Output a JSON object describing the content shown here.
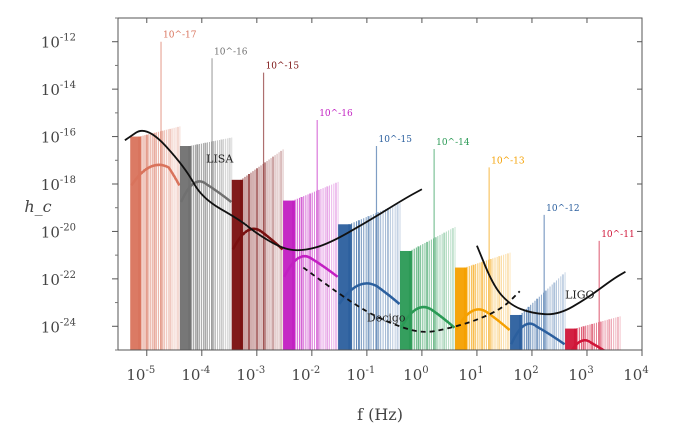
{
  "chart_data": {
    "type": "line",
    "xlabel": "f (Hz)",
    "ylabel": "h_c",
    "x_scale": "log",
    "y_scale": "log",
    "xlim": [
      3e-06,
      10000
    ],
    "ylim": [
      1e-25,
      1e-11
    ],
    "x_ticks": [
      {
        "value": 1e-05,
        "label": "10^-5"
      },
      {
        "value": 0.0001,
        "label": "10^-4"
      },
      {
        "value": 0.001,
        "label": "10^-3"
      },
      {
        "value": 0.01,
        "label": "10^-2"
      },
      {
        "value": 0.1,
        "label": "10^-1"
      },
      {
        "value": 1,
        "label": "10^0"
      },
      {
        "value": 10,
        "label": "10^1"
      },
      {
        "value": 100,
        "label": "10^2"
      },
      {
        "value": 1000,
        "label": "10^3"
      },
      {
        "value": 10000,
        "label": "10^4"
      }
    ],
    "y_ticks": [
      {
        "value": 1e-12,
        "label": "10^-12"
      },
      {
        "value": 1e-14,
        "label": "10^-14"
      },
      {
        "value": 1e-16,
        "label": "10^-16"
      },
      {
        "value": 1e-18,
        "label": "10^-18"
      },
      {
        "value": 1e-20,
        "label": "10^-20"
      },
      {
        "value": 1e-22,
        "label": "10^-22"
      },
      {
        "value": 1e-24,
        "label": "10^-24"
      }
    ],
    "sources": [
      {
        "label": "10^-17",
        "color": "#d9735c",
        "f_start": 5e-06,
        "f_end": 4e-05,
        "h_top": 3e-16,
        "h_peak": 1e-12,
        "bump_f": 2.5e-05,
        "bump_h": 5e-18,
        "fill_top": 1e-16
      },
      {
        "label": "10^-16",
        "color": "#707070",
        "f_start": 4e-05,
        "f_end": 0.00035,
        "h_top": 1e-16,
        "h_peak": 2e-13,
        "bump_f": 0.00012,
        "bump_h": 1e-18,
        "fill_top": 4e-17
      },
      {
        "label": "10^-15",
        "color": "#7a1010",
        "f_start": 0.00035,
        "f_end": 0.003,
        "h_top": 4e-17,
        "h_peak": 5e-14,
        "bump_f": 0.0012,
        "bump_h": 1e-20,
        "fill_top": 1.5e-18
      },
      {
        "label": "10^-16",
        "color": "#c21fc2",
        "f_start": 0.003,
        "f_end": 0.03,
        "h_top": 1.5e-18,
        "h_peak": 5e-16,
        "bump_f": 0.01,
        "bump_h": 7e-22,
        "fill_top": 2e-19
      },
      {
        "label": "10^-15",
        "color": "#2b5f9e",
        "f_start": 0.03,
        "f_end": 0.4,
        "h_top": 2e-19,
        "h_peak": 4e-17,
        "bump_f": 0.15,
        "bump_h": 5e-23,
        "fill_top": 2e-20
      },
      {
        "label": "10^-14",
        "color": "#2a9a55",
        "f_start": 0.4,
        "f_end": 4,
        "h_top": 2e-20,
        "h_peak": 3e-17,
        "bump_f": 1.5,
        "bump_h": 5e-24,
        "fill_top": 1.5e-21
      },
      {
        "label": "10^-13",
        "color": "#f5a000",
        "f_start": 4,
        "f_end": 40.0,
        "h_top": 1.5e-21,
        "h_peak": 5e-18,
        "bump_f": 15.0,
        "bump_h": 4e-24,
        "fill_top": 3e-22
      },
      {
        "label": "10^-12",
        "color": "#2b5f9e",
        "f_start": 40.0,
        "f_end": 400.0,
        "h_top": 3e-22,
        "h_peak": 5e-20,
        "bump_f": 120.0,
        "bump_h": 1e-24,
        "fill_top": 3e-24
      },
      {
        "label": "10^-11",
        "color": "#d01538",
        "f_start": 400.0,
        "f_end": 4000.0,
        "h_top": 3e-24,
        "h_peak": 4e-21,
        "bump_f": 1200.0,
        "bump_h": 2e-25,
        "fill_top": 8e-25
      }
    ],
    "detectors": [
      {
        "name": "LISA",
        "style": "solid",
        "points": [
          [
            4e-06,
            7e-17
          ],
          [
            1e-05,
            3e-16
          ],
          [
            5e-05,
            5e-18
          ],
          [
            0.0001,
            2.5e-19
          ],
          [
            0.0005,
            3e-20
          ],
          [
            0.001,
            8e-21
          ],
          [
            0.003,
            1.8e-21
          ],
          [
            0.007,
            1.5e-21
          ],
          [
            0.02,
            3e-21
          ],
          [
            0.1,
            2.5e-20
          ],
          [
            0.5,
            2.5e-19
          ],
          [
            1,
            6e-19
          ]
        ]
      },
      {
        "name": "Decigo",
        "style": "dashed",
        "points": [
          [
            0.007,
            3e-22
          ],
          [
            0.03,
            2.5e-23
          ],
          [
            0.1,
            4e-24
          ],
          [
            0.3,
            1.2e-24
          ],
          [
            1,
            5e-25
          ],
          [
            3,
            8e-25
          ],
          [
            10.0,
            1.8e-24
          ],
          [
            30.0,
            6e-24
          ],
          [
            60.0,
            3e-23
          ]
        ]
      },
      {
        "name": "LIGO",
        "style": "solid",
        "points": [
          [
            10.0,
            2.5e-21
          ],
          [
            20.0,
            5e-23
          ],
          [
            40.0,
            8e-24
          ],
          [
            100.0,
            3.5e-24
          ],
          [
            300.0,
            3e-24
          ],
          [
            1000.0,
            1.5e-23
          ],
          [
            3000.0,
            1e-22
          ],
          [
            5000.0,
            2e-22
          ]
        ]
      }
    ],
    "annotations": [
      {
        "text": "LISA",
        "f": 0.00012,
        "h": 8e-18
      },
      {
        "text": "Decigo",
        "f": 0.1,
        "h": 1.6e-24
      },
      {
        "text": "LIGO",
        "f": 400.0,
        "h": 1.5e-23
      }
    ]
  }
}
